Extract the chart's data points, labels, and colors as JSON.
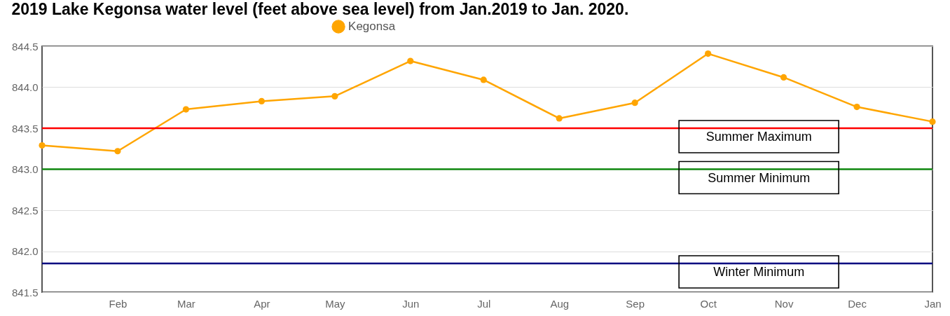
{
  "chart_data": {
    "type": "line",
    "title": "2019 Lake Kegonsa water level (feet above sea level) from Jan.2019 to Jan. 2020.",
    "x": [
      "2019-01",
      "2019-02",
      "2019-03",
      "2019-04",
      "2019-05",
      "2019-06",
      "2019-07",
      "2019-08",
      "2019-09",
      "2019-10",
      "2019-11",
      "2019-12",
      "2020-01"
    ],
    "series": [
      {
        "name": "Kegonsa",
        "color": "#ffa500",
        "values": [
          843.29,
          843.22,
          843.73,
          843.83,
          843.89,
          844.32,
          844.09,
          843.62,
          843.81,
          844.41,
          844.12,
          843.76,
          843.58
        ]
      }
    ],
    "xlim": [
      "2019-01",
      "2020-01"
    ],
    "xticks": [
      {
        "value": "2019-02",
        "label": "Feb"
      },
      {
        "value": "2019-03",
        "label": "Mar"
      },
      {
        "value": "2019-04",
        "label": "Apr"
      },
      {
        "value": "2019-05",
        "label": "May"
      },
      {
        "value": "2019-06",
        "label": "Jun"
      },
      {
        "value": "2019-07",
        "label": "Jul"
      },
      {
        "value": "2019-08",
        "label": "Aug"
      },
      {
        "value": "2019-09",
        "label": "Sep"
      },
      {
        "value": "2019-10",
        "label": "Oct"
      },
      {
        "value": "2019-11",
        "label": "Nov"
      },
      {
        "value": "2019-12",
        "label": "Dec"
      },
      {
        "value": "2020-01",
        "label": "Jan"
      }
    ],
    "ylim": [
      841.5,
      844.5
    ],
    "yticks": [
      841.5,
      {
        "value": 842,
        "label": "842.0"
      },
      842.5,
      {
        "value": 843,
        "label": "843.0"
      },
      843.5,
      {
        "value": 844,
        "label": "844.0"
      },
      844.5
    ],
    "grid": "y",
    "legend": "top",
    "marker": "circle",
    "line_style": "solid",
    "ref_lines": [
      {
        "axis": "y",
        "value": 843.5,
        "label": "Summer Maximum",
        "color": "#ff0000"
      },
      {
        "axis": "y",
        "value": 843.0,
        "label": "Summer Minimum",
        "color": "#138a13"
      },
      {
        "axis": "y",
        "value": 841.85,
        "label": "Winter Minimum",
        "color": "#000080"
      }
    ]
  }
}
